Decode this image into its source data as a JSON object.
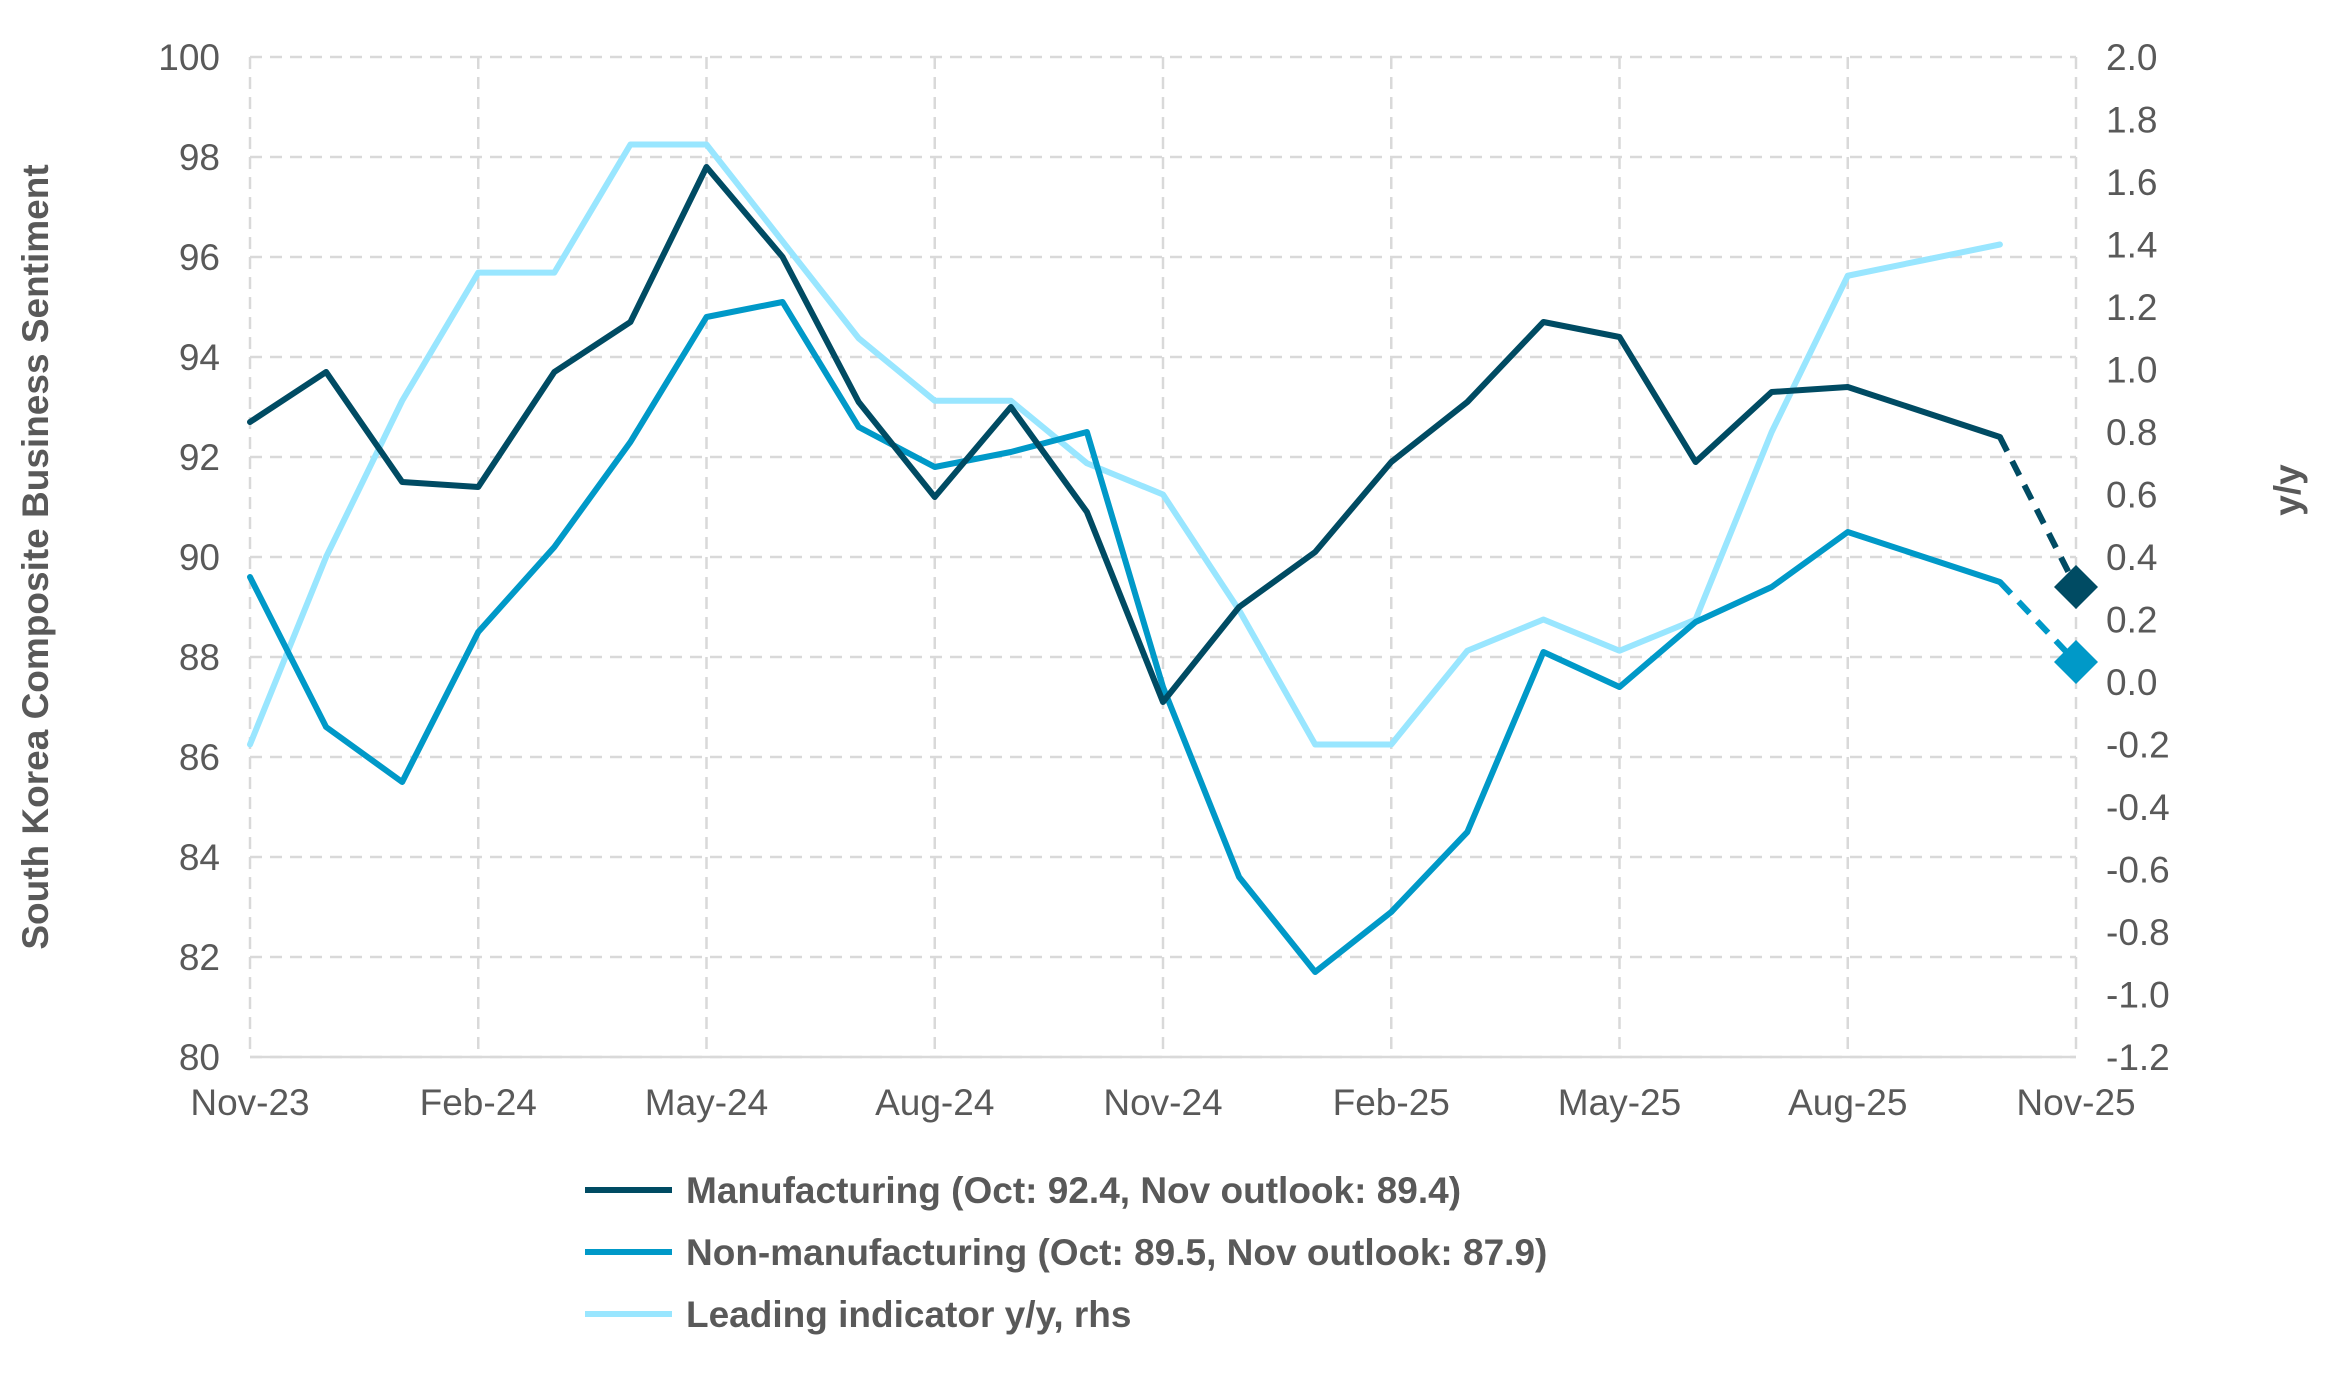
{
  "chart_data": {
    "type": "line",
    "title": "",
    "ylabel": "South Korea Composite Business Sentiment",
    "y2label": "y/y",
    "ylim": [
      80,
      100
    ],
    "y2lim": [
      -1.2,
      2.0
    ],
    "yticks": [
      "80",
      "82",
      "84",
      "86",
      "88",
      "90",
      "92",
      "94",
      "96",
      "98",
      "100"
    ],
    "y2ticks": [
      "-1.2",
      "-1.0",
      "-0.8",
      "-0.6",
      "-0.4",
      "-0.2",
      "0.0",
      "0.2",
      "0.4",
      "0.6",
      "0.8",
      "1.0",
      "1.2",
      "1.4",
      "1.6",
      "1.8",
      "2.0"
    ],
    "xticks": [
      "Nov-23",
      "Feb-24",
      "May-24",
      "Aug-24",
      "Nov-24",
      "Feb-25",
      "May-25",
      "Aug-25",
      "Nov-25"
    ],
    "x": [
      "Nov-23",
      "Dec-23",
      "Jan-24",
      "Feb-24",
      "Mar-24",
      "Apr-24",
      "May-24",
      "Jun-24",
      "Jul-24",
      "Aug-24",
      "Sep-24",
      "Oct-24",
      "Nov-24",
      "Dec-24",
      "Jan-25",
      "Feb-25",
      "Mar-25",
      "Apr-25",
      "May-25",
      "Jun-25",
      "Jul-25",
      "Aug-25",
      "Sep-25",
      "Oct-25",
      "Nov-25"
    ],
    "grid": true,
    "legend_position": "bottom",
    "series": [
      {
        "name": "Manufacturing (Oct: 92.4, Nov outlook: 89.4)",
        "axis": "left",
        "color": "#004b63",
        "values": [
          92.7,
          93.7,
          91.5,
          91.4,
          93.7,
          94.7,
          97.8,
          96.0,
          93.1,
          91.2,
          93.0,
          90.9,
          87.1,
          89.0,
          90.1,
          91.9,
          93.1,
          94.7,
          94.4,
          91.9,
          93.3,
          93.4,
          92.9,
          92.4,
          null
        ],
        "outlook": 89.4
      },
      {
        "name": "Non-manufacturing (Oct: 89.5, Nov outlook: 87.9)",
        "axis": "left",
        "color": "#0099c8",
        "values": [
          89.6,
          86.6,
          85.5,
          88.5,
          90.2,
          92.3,
          94.8,
          95.1,
          92.6,
          91.8,
          92.1,
          92.5,
          87.4,
          83.6,
          81.7,
          82.9,
          84.5,
          88.1,
          87.4,
          88.7,
          89.4,
          90.5,
          90.0,
          89.5,
          null
        ],
        "outlook": 87.9
      },
      {
        "name": "Leading indicator y/y, rhs",
        "axis": "right",
        "color": "#99e6ff",
        "values": [
          -0.2,
          0.4,
          0.9,
          1.31,
          1.31,
          1.72,
          1.72,
          1.41,
          1.1,
          0.9,
          0.9,
          0.7,
          0.6,
          0.23,
          -0.2,
          -0.2,
          0.1,
          0.2,
          0.1,
          0.2,
          0.8,
          1.3,
          1.35,
          1.4,
          null
        ]
      }
    ]
  }
}
